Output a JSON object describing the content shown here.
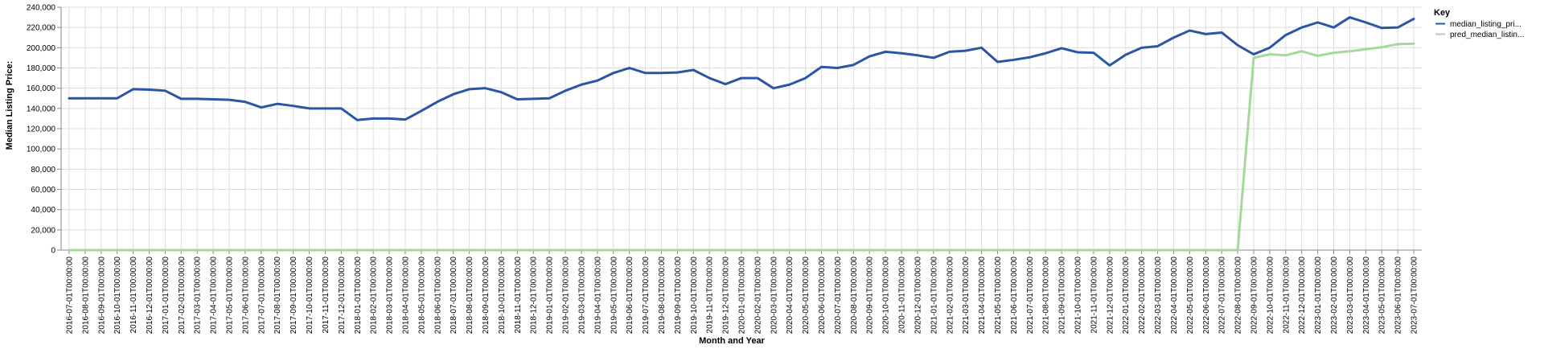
{
  "chart_data": {
    "type": "line",
    "title": "",
    "xlabel": "Month and Year",
    "ylabel": "Median Listing Price:",
    "ylim": [
      0,
      240000
    ],
    "y_ticks": [
      0,
      20000,
      40000,
      60000,
      80000,
      100000,
      120000,
      140000,
      160000,
      180000,
      200000,
      220000,
      240000
    ],
    "y_tick_labels": [
      "0",
      "20,000",
      "40,000",
      "60,000",
      "80,000",
      "100,000",
      "120,000",
      "140,000",
      "160,000",
      "180,000",
      "200,000",
      "220,000",
      "240,000"
    ],
    "grid": true,
    "legend": {
      "title": "Key",
      "position": "right"
    },
    "x": [
      "2016-07-01T00:00:00",
      "2016-08-01T00:00:00",
      "2016-09-01T00:00:00",
      "2016-10-01T00:00:00",
      "2016-11-01T00:00:00",
      "2016-12-01T00:00:00",
      "2017-01-01T00:00:00",
      "2017-02-01T00:00:00",
      "2017-03-01T00:00:00",
      "2017-04-01T00:00:00",
      "2017-05-01T00:00:00",
      "2017-06-01T00:00:00",
      "2017-07-01T00:00:00",
      "2017-08-01T00:00:00",
      "2017-09-01T00:00:00",
      "2017-10-01T00:00:00",
      "2017-11-01T00:00:00",
      "2017-12-01T00:00:00",
      "2018-01-01T00:00:00",
      "2018-02-01T00:00:00",
      "2018-03-01T00:00:00",
      "2018-04-01T00:00:00",
      "2018-05-01T00:00:00",
      "2018-06-01T00:00:00",
      "2018-07-01T00:00:00",
      "2018-08-01T00:00:00",
      "2018-09-01T00:00:00",
      "2018-10-01T00:00:00",
      "2018-11-01T00:00:00",
      "2018-12-01T00:00:00",
      "2019-01-01T00:00:00",
      "2019-02-01T00:00:00",
      "2019-03-01T00:00:00",
      "2019-04-01T00:00:00",
      "2019-05-01T00:00:00",
      "2019-06-01T00:00:00",
      "2019-07-01T00:00:00",
      "2019-08-01T00:00:00",
      "2019-09-01T00:00:00",
      "2019-10-01T00:00:00",
      "2019-11-01T00:00:00",
      "2019-12-01T00:00:00",
      "2020-01-01T00:00:00",
      "2020-02-01T00:00:00",
      "2020-03-01T00:00:00",
      "2020-04-01T00:00:00",
      "2020-05-01T00:00:00",
      "2020-06-01T00:00:00",
      "2020-07-01T00:00:00",
      "2020-08-01T00:00:00",
      "2020-09-01T00:00:00",
      "2020-10-01T00:00:00",
      "2020-11-01T00:00:00",
      "2020-12-01T00:00:00",
      "2021-01-01T00:00:00",
      "2021-02-01T00:00:00",
      "2021-03-01T00:00:00",
      "2021-04-01T00:00:00",
      "2021-05-01T00:00:00",
      "2021-06-01T00:00:00",
      "2021-07-01T00:00:00",
      "2021-08-01T00:00:00",
      "2021-09-01T00:00:00",
      "2021-10-01T00:00:00",
      "2021-11-01T00:00:00",
      "2021-12-01T00:00:00",
      "2022-01-01T00:00:00",
      "2022-02-01T00:00:00",
      "2022-03-01T00:00:00",
      "2022-04-01T00:00:00",
      "2022-05-01T00:00:00",
      "2022-06-01T00:00:00",
      "2022-07-01T00:00:00",
      "2022-08-01T00:00:00",
      "2022-09-01T00:00:00",
      "2022-10-01T00:00:00",
      "2022-11-01T00:00:00",
      "2022-12-01T00:00:00",
      "2023-01-01T00:00:00",
      "2023-02-01T00:00:00",
      "2023-03-01T00:00:00",
      "2023-04-01T00:00:00",
      "2023-05-01T00:00:00",
      "2023-06-01T00:00:00",
      "2023-07-01T00:00:00"
    ],
    "series": [
      {
        "name": "median_listing_pri...",
        "color": "#2a56a4",
        "values": [
          150000,
          150000,
          150000,
          150000,
          159000,
          158500,
          157500,
          149500,
          149500,
          149000,
          148500,
          146500,
          141000,
          144500,
          142500,
          140000,
          140000,
          140000,
          128500,
          130000,
          130000,
          129000,
          137500,
          146500,
          154000,
          159000,
          160000,
          156000,
          149000,
          149500,
          150000,
          157500,
          163500,
          167500,
          175000,
          180000,
          175000,
          175000,
          175500,
          178000,
          170000,
          164000,
          170000,
          170000,
          160000,
          163500,
          170000,
          181000,
          180000,
          183000,
          191500,
          196000,
          194500,
          192500,
          190000,
          196000,
          197000,
          200000,
          186000,
          188000,
          190500,
          194500,
          199500,
          195500,
          195000,
          182500,
          193000,
          200000,
          201500,
          210000,
          217000,
          213500,
          215000,
          202500,
          193500,
          200000,
          212500,
          220000,
          225000,
          220000,
          230000,
          225000,
          219500,
          220000,
          228500
        ]
      },
      {
        "name": "pred_median_listin...",
        "color": "#a5d99b",
        "values": [
          0,
          0,
          0,
          0,
          0,
          0,
          0,
          0,
          0,
          0,
          0,
          0,
          0,
          0,
          0,
          0,
          0,
          0,
          0,
          0,
          0,
          0,
          0,
          0,
          0,
          0,
          0,
          0,
          0,
          0,
          0,
          0,
          0,
          0,
          0,
          0,
          0,
          0,
          0,
          0,
          0,
          0,
          0,
          0,
          0,
          0,
          0,
          0,
          0,
          0,
          0,
          0,
          0,
          0,
          0,
          0,
          0,
          0,
          0,
          0,
          0,
          0,
          0,
          0,
          0,
          0,
          0,
          0,
          0,
          0,
          0,
          0,
          0,
          0,
          190000,
          193500,
          192500,
          196500,
          192000,
          195000,
          196500,
          198500,
          200500,
          203500,
          204000
        ]
      }
    ]
  }
}
